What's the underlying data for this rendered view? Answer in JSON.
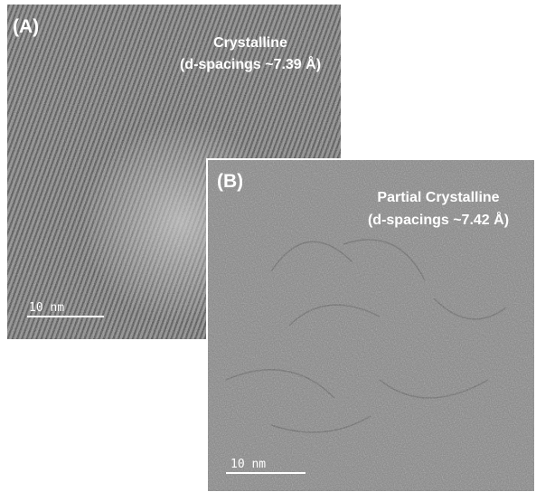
{
  "panels": [
    {
      "label": "(A)",
      "caption": [
        "Crystalline",
        "(d-spacings ~7.39 Å)"
      ],
      "scale_bar": "10 nm"
    },
    {
      "label": "(B)",
      "caption": [
        "Partial Crystalline",
        "(d-spacings ~7.42 Å)"
      ],
      "scale_bar": "10 nm"
    }
  ]
}
